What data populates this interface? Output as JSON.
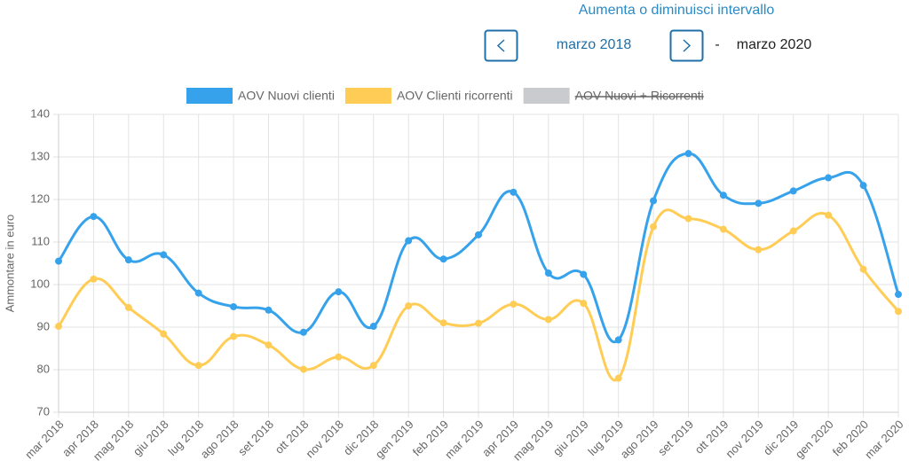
{
  "header": {
    "range_title": "Aumenta o diminuisci intervallo",
    "start": "marzo 2018",
    "separator": "-",
    "end": "marzo 2020"
  },
  "chart_data": {
    "type": "line",
    "y_label": "Ammontare in euro",
    "categories": [
      "mar 2018",
      "apr 2018",
      "mag 2018",
      "giu 2018",
      "lug 2018",
      "ago 2018",
      "set 2018",
      "ott 2018",
      "nov 2018",
      "dic 2018",
      "gen 2019",
      "feb 2019",
      "mar 2019",
      "apr 2019",
      "mag 2019",
      "giu 2019",
      "lug 2019",
      "ago 2019",
      "set 2019",
      "ott 2019",
      "nov 2019",
      "dic 2019",
      "gen 2020",
      "feb 2020",
      "mar 2020"
    ],
    "series": [
      {
        "name": "AOV Nuovi clienti",
        "color": "#36a2eb",
        "values": [
          105.5,
          116,
          105.8,
          107,
          98,
          94.8,
          94,
          88.8,
          98.3,
          90.2,
          110.3,
          106,
          111.7,
          121.7,
          102.7,
          102.4,
          87,
          119.7,
          130.8,
          121,
          119.1,
          122,
          125.1,
          123.3,
          97.7
        ]
      },
      {
        "name": "AOV Clienti ricorrenti",
        "color": "#ffcd56",
        "values": [
          90.2,
          101.3,
          94.6,
          88.4,
          81,
          87.8,
          85.8,
          80.1,
          83,
          81,
          95,
          91,
          90.9,
          95.4,
          91.8,
          95.6,
          78,
          113.6,
          115.5,
          113,
          108.2,
          112.6,
          116.3,
          103.6,
          93.7
        ]
      },
      {
        "name": "AOV Nuovi + Ricorrenti",
        "color": "#c9cbcf",
        "hidden": true,
        "values": [
          null,
          null,
          null,
          null,
          null,
          null,
          null,
          null,
          null,
          null,
          null,
          null,
          null,
          null,
          null,
          null,
          null,
          null,
          null,
          null,
          null,
          null,
          null,
          null,
          null
        ]
      }
    ],
    "ylim": [
      70,
      140
    ],
    "yticks": [
      70,
      80,
      90,
      100,
      110,
      120,
      130,
      140
    ],
    "grid": true
  }
}
